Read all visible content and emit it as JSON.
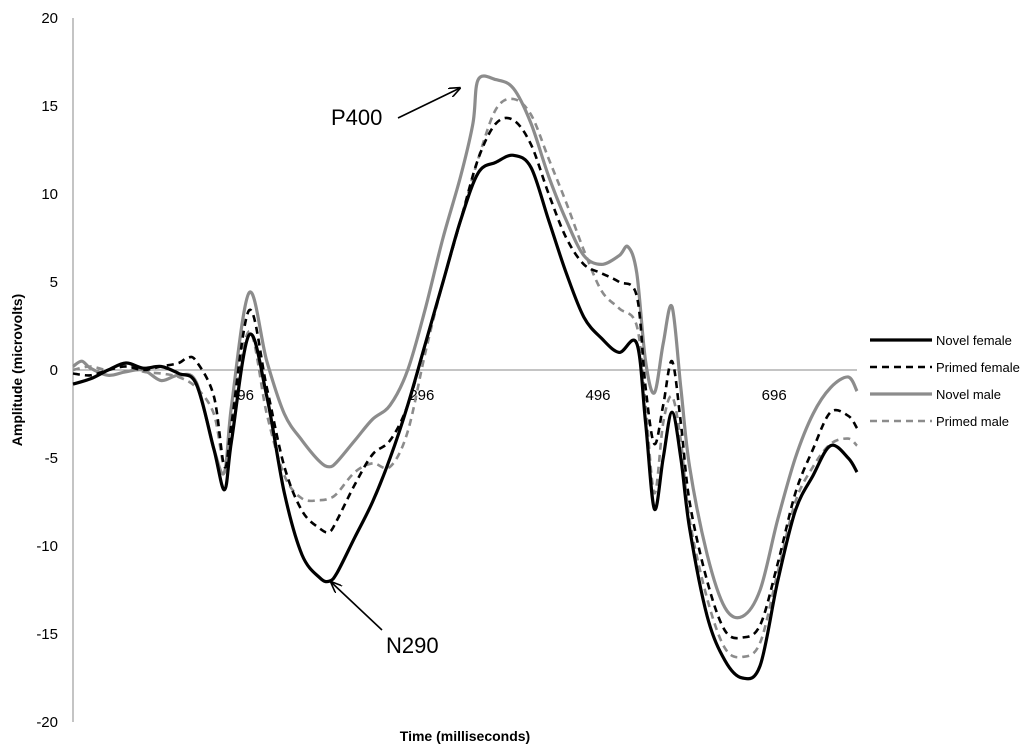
{
  "chart_data": {
    "type": "line",
    "xlabel": "Time (milliseconds)",
    "ylabel": "Amplitude (microvolts)",
    "xlim": [
      -100,
      790
    ],
    "ylim": [
      -20,
      20
    ],
    "yticks": [
      -20,
      -15,
      -10,
      -5,
      0,
      5,
      10,
      15,
      20
    ],
    "xticks": [
      96,
      296,
      496,
      696
    ],
    "grid": false,
    "legend_position": "right",
    "annotations": [
      {
        "label": "P400",
        "arrow_to": [
          354,
          16
        ]
      },
      {
        "label": "N290",
        "arrow_to": [
          191,
          -12
        ]
      }
    ],
    "series": [
      {
        "name": "Novel female",
        "color": "#000000",
        "dash": "solid",
        "x": [
          -100,
          -80,
          -60,
          -40,
          -20,
          0,
          20,
          40,
          60,
          72,
          80,
          100,
          120,
          140,
          160,
          180,
          191,
          200,
          220,
          240,
          260,
          280,
          300,
          320,
          340,
          360,
          380,
          400,
          420,
          440,
          460,
          480,
          500,
          520,
          540,
          550,
          560,
          570,
          580,
          590,
          600,
          620,
          640,
          660,
          680,
          700,
          720,
          740,
          760,
          780,
          790
        ],
        "y": [
          -0.8,
          -0.5,
          0.0,
          0.4,
          0.1,
          0.2,
          -0.2,
          -0.8,
          -4.5,
          -6.8,
          -4.0,
          2.0,
          -1.5,
          -7.0,
          -10.5,
          -11.8,
          -12.0,
          -11.5,
          -9.5,
          -7.5,
          -5.0,
          -2.0,
          1.5,
          5.0,
          8.5,
          11.2,
          11.8,
          12.2,
          11.5,
          8.5,
          5.5,
          3.0,
          1.8,
          1.0,
          1.5,
          -3.0,
          -7.9,
          -5.0,
          -2.4,
          -5.0,
          -9.0,
          -14.0,
          -16.5,
          -17.5,
          -16.8,
          -12.0,
          -8.0,
          -6.0,
          -4.3,
          -5.0,
          -5.8
        ]
      },
      {
        "name": "Primed female",
        "color": "#000000",
        "dash": "dashed",
        "x": [
          -100,
          -80,
          -60,
          -40,
          -20,
          0,
          20,
          30,
          40,
          60,
          72,
          80,
          100,
          120,
          140,
          160,
          180,
          191,
          200,
          220,
          240,
          260,
          280,
          300,
          320,
          340,
          360,
          380,
          400,
          420,
          440,
          460,
          480,
          500,
          520,
          540,
          550,
          560,
          570,
          580,
          590,
          600,
          620,
          640,
          660,
          680,
          700,
          720,
          740,
          760,
          780,
          790
        ],
        "y": [
          -0.2,
          -0.3,
          0.0,
          0.2,
          0.0,
          0.2,
          0.4,
          0.7,
          0.5,
          -1.5,
          -5.5,
          -3.0,
          3.4,
          -1.0,
          -5.5,
          -8.0,
          -9.0,
          -9.2,
          -8.5,
          -6.5,
          -4.8,
          -4.0,
          -2.0,
          1.5,
          5.0,
          8.5,
          12.0,
          14.0,
          14.2,
          12.8,
          10.0,
          7.5,
          6.0,
          5.5,
          5.0,
          4.2,
          -1.0,
          -4.2,
          -2.0,
          0.5,
          -3.0,
          -7.5,
          -12.0,
          -14.8,
          -15.2,
          -14.5,
          -11.0,
          -7.0,
          -4.5,
          -2.4,
          -2.6,
          -3.3
        ]
      },
      {
        "name": "Novel male",
        "color": "#8c8c8c",
        "dash": "solid",
        "x": [
          -100,
          -90,
          -80,
          -60,
          -40,
          -20,
          0,
          20,
          40,
          60,
          72,
          80,
          100,
          120,
          140,
          160,
          180,
          191,
          200,
          220,
          240,
          260,
          280,
          300,
          320,
          340,
          354,
          360,
          380,
          400,
          420,
          440,
          460,
          480,
          500,
          520,
          530,
          540,
          550,
          560,
          570,
          580,
          590,
          600,
          620,
          640,
          660,
          680,
          700,
          720,
          740,
          760,
          780,
          790
        ],
        "y": [
          0.2,
          0.5,
          0.1,
          -0.3,
          -0.1,
          0.0,
          -0.6,
          -0.3,
          -0.7,
          -4.5,
          -5.8,
          -2.0,
          4.4,
          0.5,
          -2.5,
          -4.0,
          -5.2,
          -5.5,
          -5.2,
          -4.0,
          -2.8,
          -2.0,
          0.0,
          3.5,
          7.5,
          11.0,
          14.0,
          16.5,
          16.5,
          16.0,
          14.0,
          11.0,
          8.5,
          6.5,
          6.0,
          6.5,
          7.0,
          5.5,
          0.5,
          -1.3,
          1.5,
          3.6,
          -1.0,
          -5.5,
          -10.5,
          -13.5,
          -14.0,
          -12.5,
          -8.5,
          -5.0,
          -2.5,
          -1.0,
          -0.4,
          -1.2
        ]
      },
      {
        "name": "Primed male",
        "color": "#8c8c8c",
        "dash": "dashed",
        "x": [
          -100,
          -80,
          -60,
          -40,
          -20,
          0,
          20,
          40,
          60,
          72,
          80,
          100,
          120,
          140,
          160,
          180,
          191,
          200,
          220,
          240,
          260,
          280,
          300,
          320,
          340,
          360,
          380,
          400,
          420,
          440,
          460,
          480,
          500,
          520,
          540,
          550,
          560,
          570,
          580,
          590,
          600,
          620,
          640,
          660,
          680,
          700,
          720,
          740,
          760,
          780,
          790
        ],
        "y": [
          0.0,
          0.2,
          0.0,
          0.3,
          -0.1,
          -0.2,
          -0.4,
          -1.0,
          -2.5,
          -5.5,
          -3.0,
          2.2,
          -2.5,
          -6.0,
          -7.3,
          -7.4,
          -7.3,
          -7.0,
          -5.8,
          -5.3,
          -5.5,
          -3.5,
          1.0,
          5.0,
          8.5,
          12.0,
          14.8,
          15.4,
          14.5,
          12.0,
          9.5,
          6.8,
          4.5,
          3.5,
          2.5,
          -2.0,
          -7.0,
          -3.0,
          -1.5,
          -4.0,
          -8.5,
          -13.0,
          -15.8,
          -16.3,
          -15.5,
          -11.5,
          -7.5,
          -5.5,
          -4.2,
          -3.9,
          -4.3
        ]
      }
    ]
  }
}
